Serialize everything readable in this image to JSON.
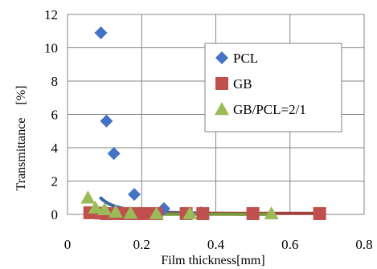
{
  "chart_data": {
    "type": "scatter",
    "title": "",
    "xlabel": "Film thickness[mm]",
    "ylabel": "Transmittance　[%]",
    "xlim": [
      0,
      0.8
    ],
    "ylim": [
      0,
      12
    ],
    "x_ticks": [
      "0",
      "0.2",
      "0.4",
      "0.6",
      "0.8"
    ],
    "y_ticks": [
      "0",
      "2",
      "4",
      "6",
      "8",
      "10",
      "12"
    ],
    "grid": true,
    "legend_position": "top-right",
    "series": [
      {
        "name": "PCL",
        "marker": "diamond",
        "color": "#4472C4",
        "points": [
          {
            "x": 0.09,
            "y": 10.9
          },
          {
            "x": 0.105,
            "y": 5.6
          },
          {
            "x": 0.125,
            "y": 3.65
          },
          {
            "x": 0.18,
            "y": 1.2
          },
          {
            "x": 0.26,
            "y": 0.35
          },
          {
            "x": 0.36,
            "y": 0.1
          }
        ]
      },
      {
        "name": "GB",
        "marker": "square",
        "color": "#C0504D",
        "points": [
          {
            "x": 0.06,
            "y": 0.1
          },
          {
            "x": 0.09,
            "y": 0.08
          },
          {
            "x": 0.105,
            "y": 0.05
          },
          {
            "x": 0.13,
            "y": 0.05
          },
          {
            "x": 0.15,
            "y": 0.05
          },
          {
            "x": 0.18,
            "y": 0.05
          },
          {
            "x": 0.21,
            "y": 0.05
          },
          {
            "x": 0.24,
            "y": 0.05
          },
          {
            "x": 0.32,
            "y": 0.05
          },
          {
            "x": 0.365,
            "y": 0.05
          },
          {
            "x": 0.5,
            "y": 0.05
          },
          {
            "x": 0.68,
            "y": 0.05
          }
        ]
      },
      {
        "name": "GB/PCL=2/1",
        "marker": "triangle",
        "color": "#9BBB59",
        "points": [
          {
            "x": 0.055,
            "y": 1.0
          },
          {
            "x": 0.075,
            "y": 0.4
          },
          {
            "x": 0.1,
            "y": 0.3
          },
          {
            "x": 0.13,
            "y": 0.15
          },
          {
            "x": 0.17,
            "y": 0.08
          },
          {
            "x": 0.24,
            "y": 0.05
          },
          {
            "x": 0.33,
            "y": 0.05
          },
          {
            "x": 0.55,
            "y": 0.05
          }
        ]
      }
    ],
    "trendlines": [
      {
        "series": "PCL",
        "color": "#3A64A8",
        "a": 0.78,
        "b": 0.013,
        "x_start": 0.09,
        "x_end": 0.5
      },
      {
        "series": "GB",
        "color": "#A0403D",
        "a": 0.0,
        "b": 0.06,
        "x_start": 0.05,
        "x_end": 0.68
      },
      {
        "series": "GB/PCL=2/1",
        "color": "#7A9A3F",
        "a": 0.055,
        "b": 0.0,
        "x_start": 0.055,
        "x_end": 0.55
      }
    ]
  }
}
